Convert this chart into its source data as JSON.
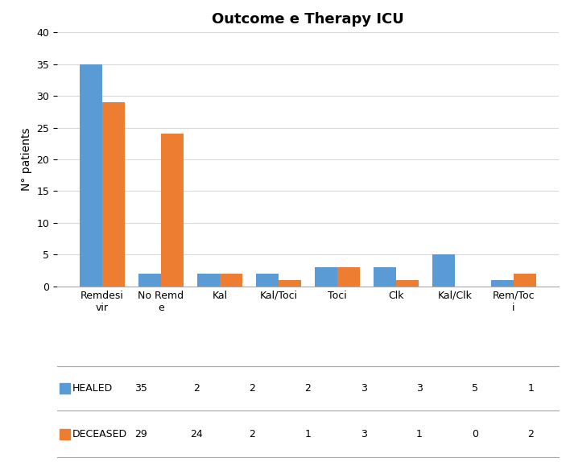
{
  "title": "Outcome e Therapy ICU",
  "categories": [
    "Remdesi\nvir",
    "No Remd\ne",
    "Kal",
    "Kal/Toci",
    "Toci",
    "Clk",
    "Kal/Clk",
    "Rem/Toc\ni"
  ],
  "healed": [
    35,
    2,
    2,
    2,
    3,
    3,
    5,
    1
  ],
  "deceased": [
    29,
    24,
    2,
    1,
    3,
    1,
    0,
    2
  ],
  "healed_color": "#5b9bd5",
  "deceased_color": "#ed7d31",
  "ylabel": "N° patients",
  "ylim": [
    0,
    40
  ],
  "yticks": [
    0,
    5,
    10,
    15,
    20,
    25,
    30,
    35,
    40
  ],
  "legend_labels": [
    "HEALED",
    "DECEASED"
  ],
  "title_fontsize": 13,
  "axis_fontsize": 10,
  "tick_fontsize": 9,
  "bar_width": 0.38,
  "background_color": "#ffffff",
  "grid_color": "#d9d9d9"
}
